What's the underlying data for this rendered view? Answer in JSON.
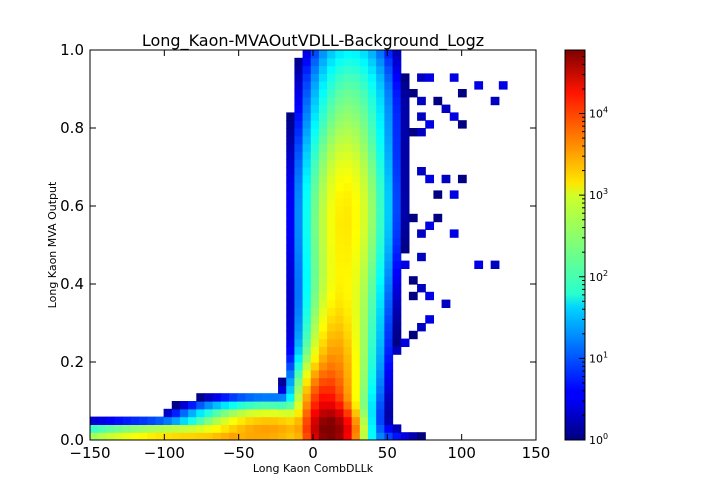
{
  "chart_data": {
    "type": "heatmap",
    "title": "Long_Kaon-MVAOutVDLL-Background_Logz",
    "xlabel": "Long Kaon CombDLLk",
    "ylabel": "Long Kaon MVA Output",
    "xlim": [
      -150,
      150
    ],
    "ylim": [
      0.0,
      1.0
    ],
    "x_ticks": [
      "−150",
      "−100",
      "−50",
      "0",
      "50",
      "100",
      "150"
    ],
    "x_tick_values": [
      -150,
      -100,
      -50,
      0,
      50,
      100,
      150
    ],
    "y_ticks": [
      "0.0",
      "0.2",
      "0.4",
      "0.6",
      "0.8",
      "1.0"
    ],
    "y_tick_values": [
      0.0,
      0.2,
      0.4,
      0.6,
      0.8,
      1.0
    ],
    "colorbar": {
      "scale": "log",
      "colormap": "jet",
      "range": [
        1,
        60000
      ],
      "ticks": [
        {
          "base": "10",
          "exp": "0",
          "value": 1
        },
        {
          "base": "10",
          "exp": "1",
          "value": 10
        },
        {
          "base": "10",
          "exp": "2",
          "value": 100
        },
        {
          "base": "10",
          "exp": "3",
          "value": 1000
        },
        {
          "base": "10",
          "exp": "4",
          "value": 10000
        }
      ]
    },
    "bins": {
      "x_start": -150,
      "x_width": 5.5,
      "nx": 55,
      "y_start": 0.0,
      "y_width": 0.02,
      "ny": 50
    },
    "mass": [
      {
        "x": 12,
        "y": 0.025,
        "sx": 7,
        "sy": 0.03,
        "amp": 60000
      },
      {
        "x": 8,
        "y": 0.06,
        "sx": 7,
        "sy": 0.06,
        "amp": 15000
      },
      {
        "x": 15,
        "y": 0.15,
        "sx": 8,
        "sy": 0.1,
        "amp": 3000
      },
      {
        "x": 20,
        "y": 0.35,
        "sx": 10,
        "sy": 0.15,
        "amp": 800
      },
      {
        "x": 22,
        "y": 0.6,
        "sx": 11,
        "sy": 0.12,
        "amp": 1000
      },
      {
        "x": 25,
        "y": 0.85,
        "sx": 12,
        "sy": 0.1,
        "amp": 150
      },
      {
        "x": -80,
        "y": 0.012,
        "sx": 40,
        "sy": 0.012,
        "amp": 1500
      },
      {
        "x": -30,
        "y": 0.03,
        "sx": 20,
        "sy": 0.025,
        "amp": 2500
      }
    ],
    "low_tail": {
      "x_from": -150,
      "x_to": -50,
      "y": 0.01,
      "amp_from": 150,
      "amp_to": 3000
    },
    "sparse_points": [
      [
        70,
        0.93
      ],
      [
        80,
        0.93
      ],
      [
        95,
        0.92
      ],
      [
        110,
        0.91
      ],
      [
        125,
        0.91
      ],
      [
        65,
        0.88
      ],
      [
        75,
        0.87
      ],
      [
        85,
        0.86
      ],
      [
        90,
        0.85
      ],
      [
        100,
        0.88
      ],
      [
        120,
        0.86
      ],
      [
        60,
        0.84
      ],
      [
        70,
        0.82
      ],
      [
        80,
        0.81
      ],
      [
        95,
        0.83
      ],
      [
        100,
        0.81
      ],
      [
        65,
        0.79
      ],
      [
        75,
        0.78
      ],
      [
        60,
        0.72
      ],
      [
        70,
        0.68
      ],
      [
        80,
        0.66
      ],
      [
        90,
        0.67
      ],
      [
        85,
        0.62
      ],
      [
        100,
        0.66
      ],
      [
        95,
        0.62
      ],
      [
        65,
        0.56
      ],
      [
        70,
        0.52
      ],
      [
        80,
        0.54
      ],
      [
        85,
        0.56
      ],
      [
        75,
        0.47
      ],
      [
        60,
        0.44
      ],
      [
        95,
        0.52
      ],
      [
        110,
        0.44
      ],
      [
        120,
        0.45
      ],
      [
        65,
        0.4
      ],
      [
        70,
        0.38
      ],
      [
        80,
        0.37
      ],
      [
        90,
        0.35
      ],
      [
        80,
        0.3
      ],
      [
        65,
        0.26
      ],
      [
        55,
        0.22
      ],
      [
        60,
        0.25
      ],
      [
        75,
        0.28
      ],
      [
        58,
        0.33
      ],
      [
        68,
        0.36
      ]
    ]
  }
}
